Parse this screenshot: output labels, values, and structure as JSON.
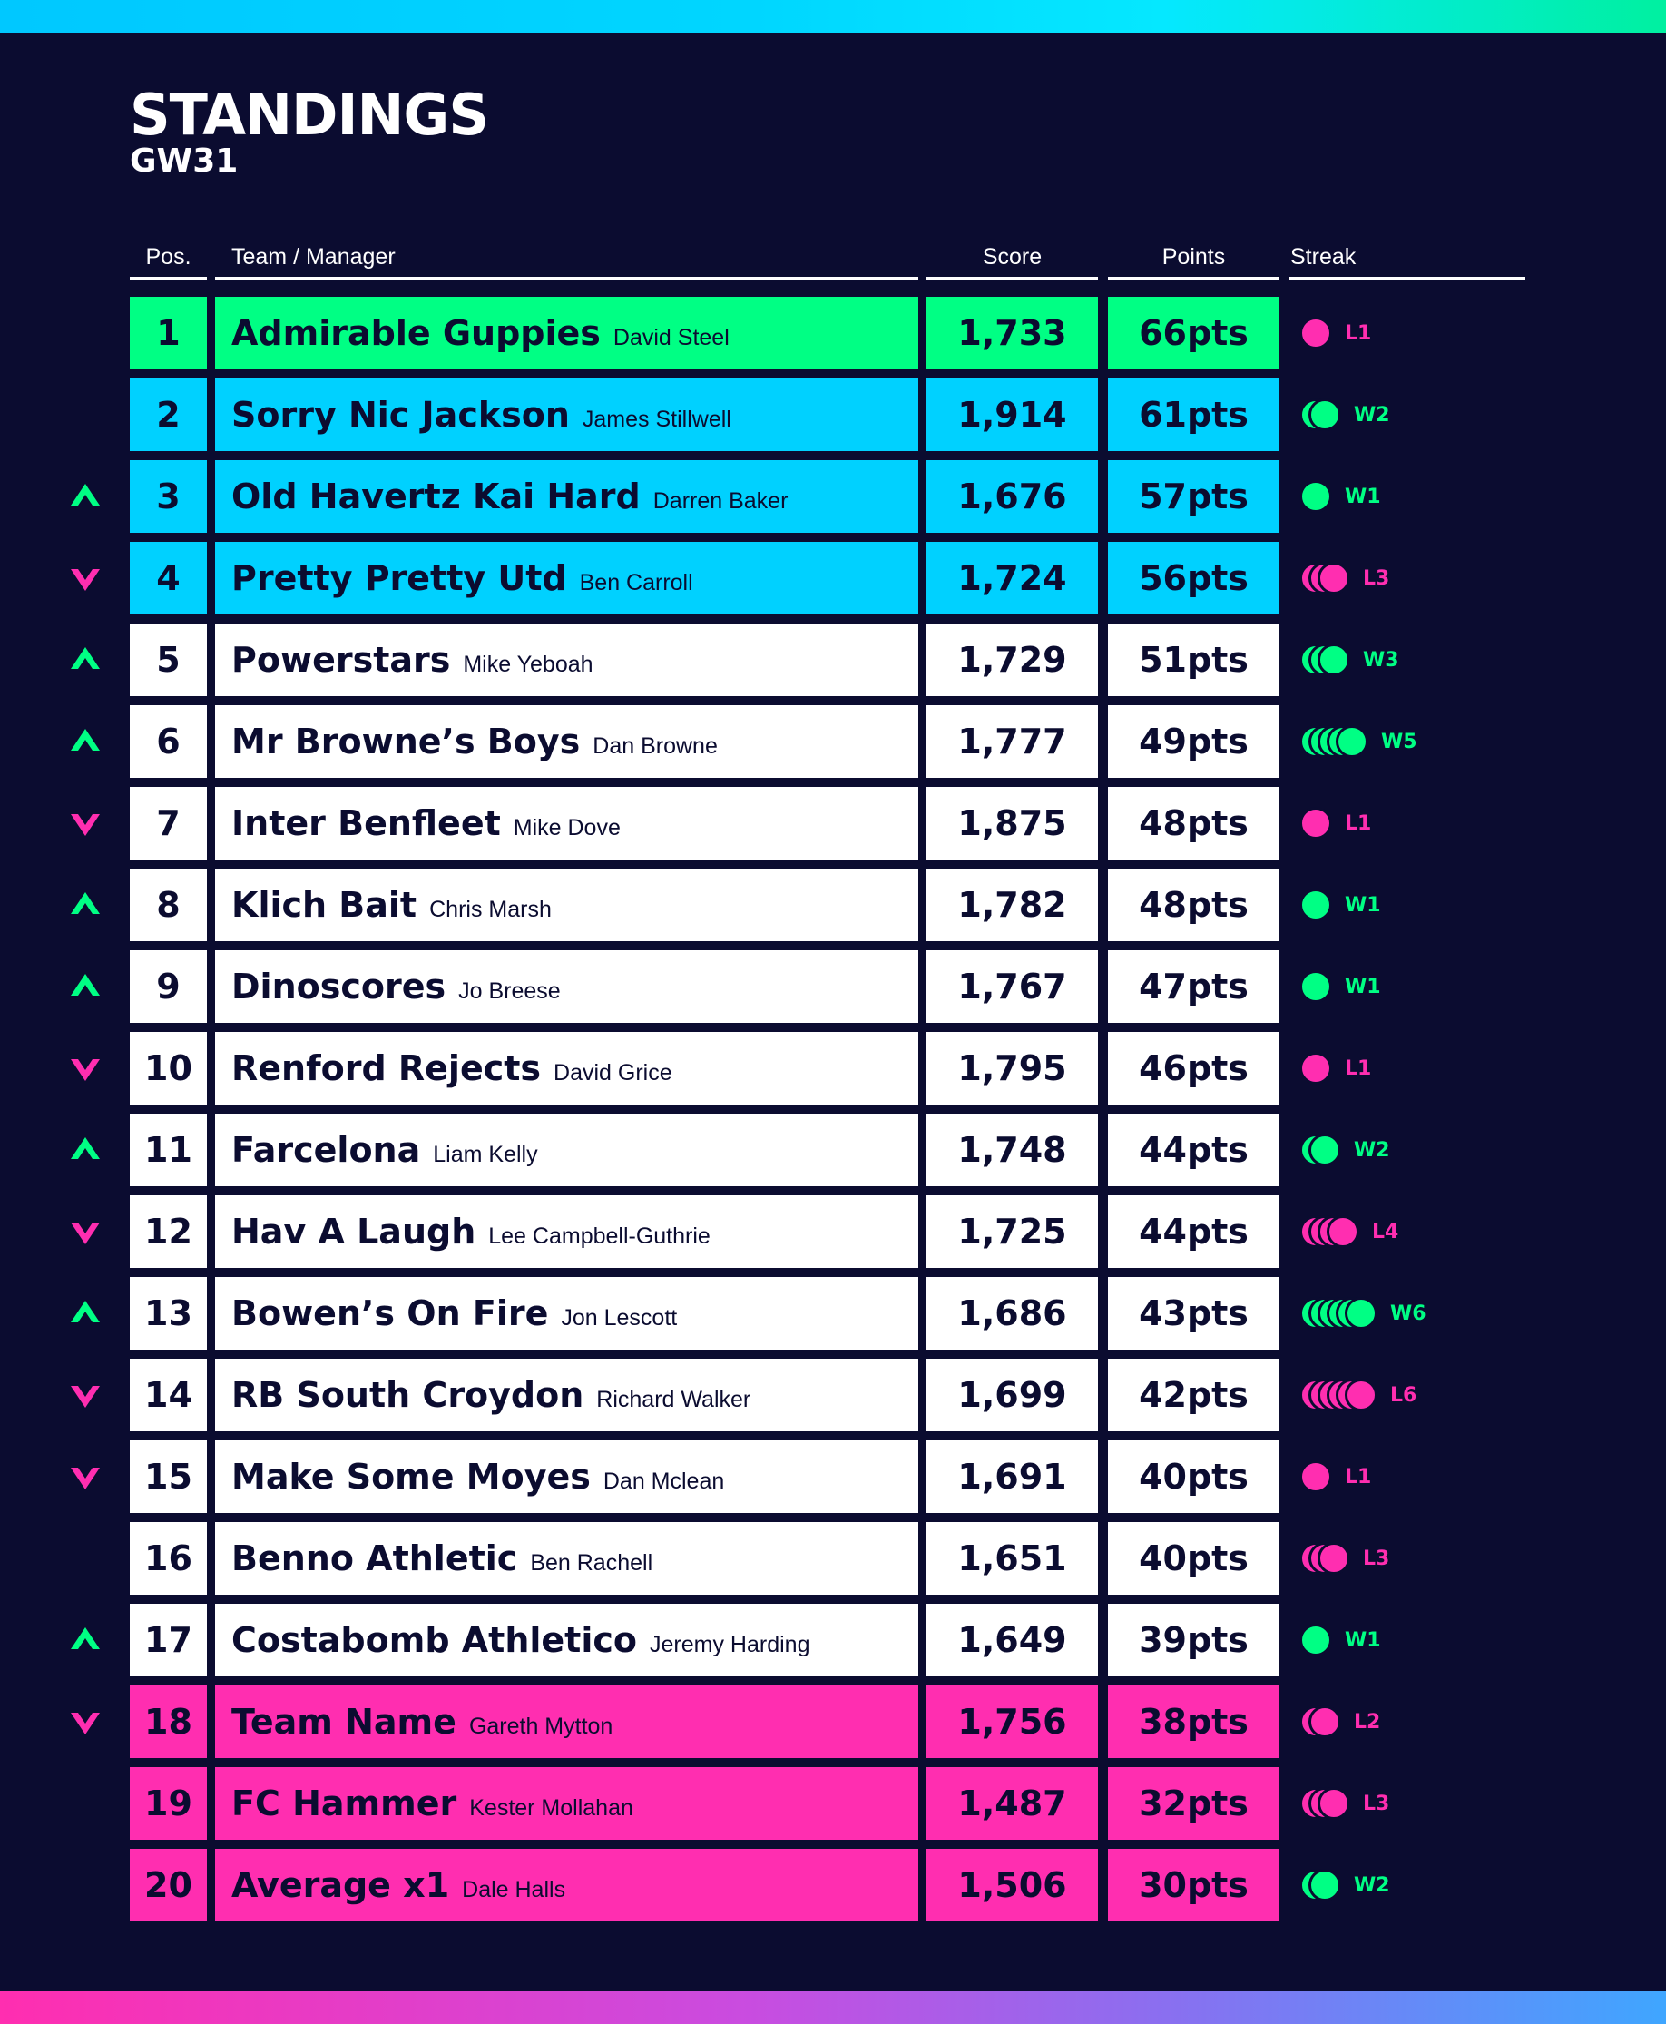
{
  "title": "STANDINGS",
  "subtitle": "GW31",
  "headers": {
    "pos": "Pos.",
    "team": "Team / Manager",
    "score": "Score",
    "points": "Points",
    "streak": "Streak"
  },
  "colors": {
    "background": "#0b0c30",
    "green": "#00ff84",
    "blue": "#00d1ff",
    "white": "#ffffff",
    "pink": "#ff2eb0"
  },
  "rows": [
    {
      "pos": "1",
      "team": "Admirable Guppies",
      "manager": "David Steel",
      "score": "1,733",
      "points": "66pts",
      "streak": "L1",
      "zone": "green",
      "movement": "none"
    },
    {
      "pos": "2",
      "team": "Sorry Nic Jackson",
      "manager": "James Stillwell",
      "score": "1,914",
      "points": "61pts",
      "streak": "W2",
      "zone": "blue",
      "movement": "none"
    },
    {
      "pos": "3",
      "team": "Old Havertz Kai Hard",
      "manager": "Darren Baker",
      "score": "1,676",
      "points": "57pts",
      "streak": "W1",
      "zone": "blue",
      "movement": "up"
    },
    {
      "pos": "4",
      "team": "Pretty Pretty Utd",
      "manager": "Ben Carroll",
      "score": "1,724",
      "points": "56pts",
      "streak": "L3",
      "zone": "blue",
      "movement": "down"
    },
    {
      "pos": "5",
      "team": "Powerstars",
      "manager": "Mike Yeboah",
      "score": "1,729",
      "points": "51pts",
      "streak": "W3",
      "zone": "white",
      "movement": "up"
    },
    {
      "pos": "6",
      "team": "Mr Browne’s Boys",
      "manager": "Dan Browne",
      "score": "1,777",
      "points": "49pts",
      "streak": "W5",
      "zone": "white",
      "movement": "up"
    },
    {
      "pos": "7",
      "team": "Inter Benfleet",
      "manager": "Mike Dove",
      "score": "1,875",
      "points": "48pts",
      "streak": "L1",
      "zone": "white",
      "movement": "down"
    },
    {
      "pos": "8",
      "team": "Klich Bait",
      "manager": "Chris Marsh",
      "score": "1,782",
      "points": "48pts",
      "streak": "W1",
      "zone": "white",
      "movement": "up"
    },
    {
      "pos": "9",
      "team": "Dinoscores",
      "manager": "Jo Breese",
      "score": "1,767",
      "points": "47pts",
      "streak": "W1",
      "zone": "white",
      "movement": "up"
    },
    {
      "pos": "10",
      "team": "Renford Rejects",
      "manager": "David Grice",
      "score": "1,795",
      "points": "46pts",
      "streak": "L1",
      "zone": "white",
      "movement": "down"
    },
    {
      "pos": "11",
      "team": "Farcelona",
      "manager": "Liam Kelly",
      "score": "1,748",
      "points": "44pts",
      "streak": "W2",
      "zone": "white",
      "movement": "up"
    },
    {
      "pos": "12",
      "team": "Hav A Laugh",
      "manager": "Lee Campbell-Guthrie",
      "score": "1,725",
      "points": "44pts",
      "streak": "L4",
      "zone": "white",
      "movement": "down"
    },
    {
      "pos": "13",
      "team": "Bowen’s On Fire",
      "manager": "Jon Lescott",
      "score": "1,686",
      "points": "43pts",
      "streak": "W6",
      "zone": "white",
      "movement": "up"
    },
    {
      "pos": "14",
      "team": "RB South Croydon",
      "manager": "Richard Walker",
      "score": "1,699",
      "points": "42pts",
      "streak": "L6",
      "zone": "white",
      "movement": "down"
    },
    {
      "pos": "15",
      "team": "Make Some Moyes",
      "manager": "Dan Mclean",
      "score": "1,691",
      "points": "40pts",
      "streak": "L1",
      "zone": "white",
      "movement": "down"
    },
    {
      "pos": "16",
      "team": "Benno Athletic",
      "manager": "Ben Rachell",
      "score": "1,651",
      "points": "40pts",
      "streak": "L3",
      "zone": "white",
      "movement": "none"
    },
    {
      "pos": "17",
      "team": "Costabomb Athletico",
      "manager": "Jeremy Harding",
      "score": "1,649",
      "points": "39pts",
      "streak": "W1",
      "zone": "white",
      "movement": "up"
    },
    {
      "pos": "18",
      "team": "Team Name",
      "manager": "Gareth Mytton",
      "score": "1,756",
      "points": "38pts",
      "streak": "L2",
      "zone": "pink",
      "movement": "down"
    },
    {
      "pos": "19",
      "team": "FC Hammer",
      "manager": "Kester Mollahan",
      "score": "1,487",
      "points": "32pts",
      "streak": "L3",
      "zone": "pink",
      "movement": "none"
    },
    {
      "pos": "20",
      "team": "Average x1",
      "manager": "Dale Halls",
      "score": "1,506",
      "points": "30pts",
      "streak": "W2",
      "zone": "pink",
      "movement": "none"
    }
  ]
}
